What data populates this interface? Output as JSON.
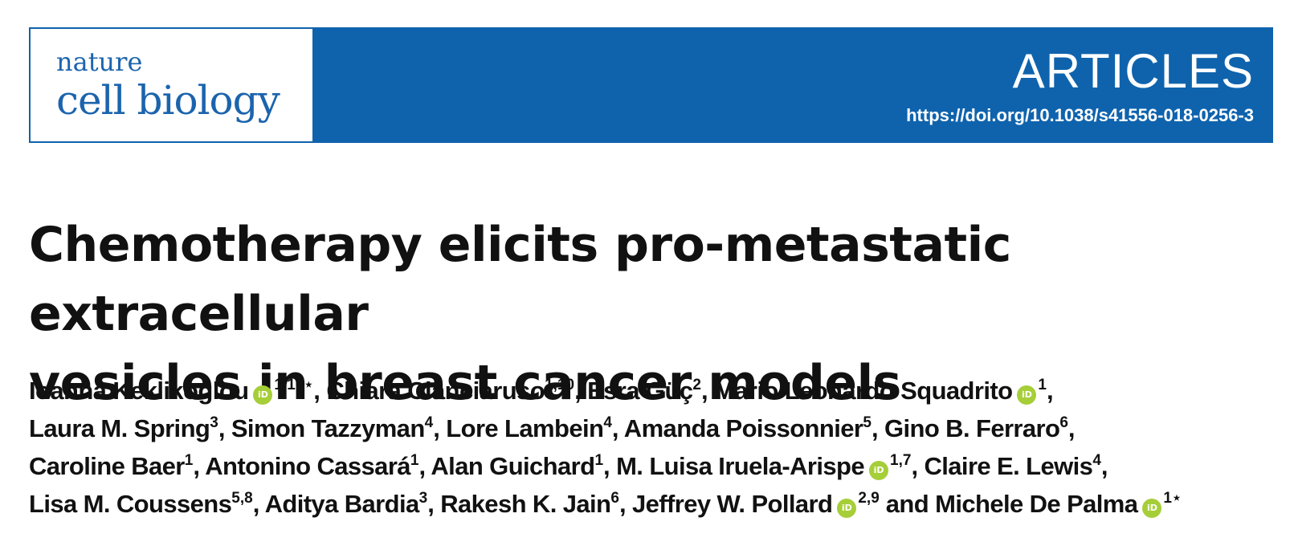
{
  "journal": {
    "logo_line1": "nature",
    "logo_line2": "cell biology",
    "section": "ARTICLES",
    "doi": "https://doi.org/10.1038/s41556-018-0256-3",
    "brand_color": "#0f63ad",
    "orcid_color": "#a6ce39"
  },
  "article": {
    "title_line1": "Chemotherapy elicits pro-metastatic extracellular",
    "title_line2": "vesicles in breast cancer models"
  },
  "author_lines": [
    [
      {
        "name": "Ioanna Keklikoglou",
        "orcid": true,
        "aff": "1,10⋆",
        "sep": ", "
      },
      {
        "name": "Chiara Cianciaruso",
        "orcid": false,
        "aff": "1,10",
        "sep": ", "
      },
      {
        "name": "Esra Güç",
        "orcid": false,
        "aff": "2",
        "sep": ", "
      },
      {
        "name": "Mario Leonardo Squadrito",
        "orcid": true,
        "aff": "1",
        "sep": ","
      }
    ],
    [
      {
        "name": "Laura M. Spring",
        "orcid": false,
        "aff": "3",
        "sep": ", "
      },
      {
        "name": "Simon Tazzyman",
        "orcid": false,
        "aff": "4",
        "sep": ", "
      },
      {
        "name": "Lore Lambein",
        "orcid": false,
        "aff": "4",
        "sep": ", "
      },
      {
        "name": "Amanda Poissonnier",
        "orcid": false,
        "aff": "5",
        "sep": ", "
      },
      {
        "name": "Gino B. Ferraro",
        "orcid": false,
        "aff": "6",
        "sep": ","
      }
    ],
    [
      {
        "name": "Caroline Baer",
        "orcid": false,
        "aff": "1",
        "sep": ", "
      },
      {
        "name": "Antonino Cassará",
        "orcid": false,
        "aff": "1",
        "sep": ", "
      },
      {
        "name": "Alan Guichard",
        "orcid": false,
        "aff": "1",
        "sep": ", "
      },
      {
        "name": "M. Luisa Iruela-Arispe",
        "orcid": true,
        "aff": "1,7",
        "sep": ", "
      },
      {
        "name": "Claire E. Lewis",
        "orcid": false,
        "aff": "4",
        "sep": ","
      }
    ],
    [
      {
        "name": "Lisa M. Coussens",
        "orcid": false,
        "aff": "5,8",
        "sep": ", "
      },
      {
        "name": "Aditya Bardia",
        "orcid": false,
        "aff": "3",
        "sep": ", "
      },
      {
        "name": "Rakesh K. Jain",
        "orcid": false,
        "aff": "6",
        "sep": ", "
      },
      {
        "name": "Jeffrey W. Pollard",
        "orcid": true,
        "aff": "2,9",
        "sep": " and "
      },
      {
        "name": "Michele De Palma",
        "orcid": true,
        "aff": "1⋆",
        "sep": ""
      }
    ]
  ]
}
